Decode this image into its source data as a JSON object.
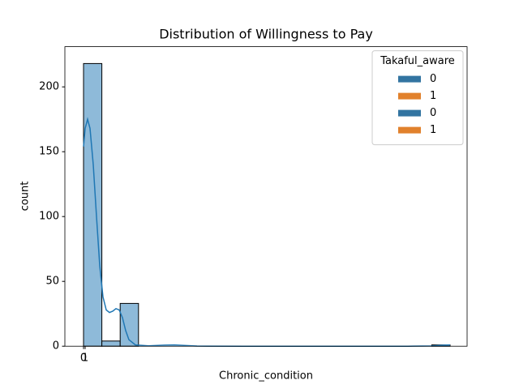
{
  "chart_data": {
    "type": "histogram",
    "title": "Distribution of Willingness to Pay",
    "xlabel": "Chronic_condition",
    "ylabel": "count",
    "bins": [
      0,
      11.3,
      22.6,
      33.9,
      45.2,
      56.5,
      67.8,
      79.1,
      90.4,
      101.7,
      113,
      124.3,
      135.6,
      146.9,
      158.2,
      169.5,
      180.8,
      192.1,
      203.4,
      214.7,
      226
    ],
    "values": [
      218,
      4,
      33,
      0,
      0,
      0,
      0,
      0,
      0,
      0,
      0,
      0,
      0,
      0,
      0,
      0,
      0,
      0,
      0,
      1
    ],
    "color": "#8ebad9",
    "kde": {
      "color": "#1f77b4",
      "x": [
        0,
        1,
        2.5,
        4,
        6,
        8,
        10,
        12,
        14,
        16,
        18,
        20,
        22,
        24,
        26,
        28,
        32,
        40,
        50,
        56,
        62,
        70,
        100,
        150,
        200,
        215,
        222,
        226
      ],
      "y": [
        154,
        168,
        175,
        168,
        140,
        100,
        62,
        38,
        28,
        26,
        27,
        29,
        28,
        22,
        12,
        5,
        1,
        0.3,
        0.8,
        1,
        0.6,
        0.1,
        0,
        0,
        0,
        0.2,
        0.8,
        1
      ]
    },
    "xlim": [
      -11.5,
      236.5
    ],
    "ylim": [
      0,
      231
    ],
    "xticks": [
      0,
      1
    ],
    "yticks": [
      0,
      50,
      100,
      150,
      200
    ],
    "legend": {
      "title": "Takaful_aware",
      "position": "upper right",
      "entries": [
        {
          "label": "0",
          "color": "#3274a1"
        },
        {
          "label": "1",
          "color": "#e1812c"
        },
        {
          "label": "0",
          "color": "#3274a1"
        },
        {
          "label": "1",
          "color": "#e1812c"
        }
      ]
    }
  }
}
